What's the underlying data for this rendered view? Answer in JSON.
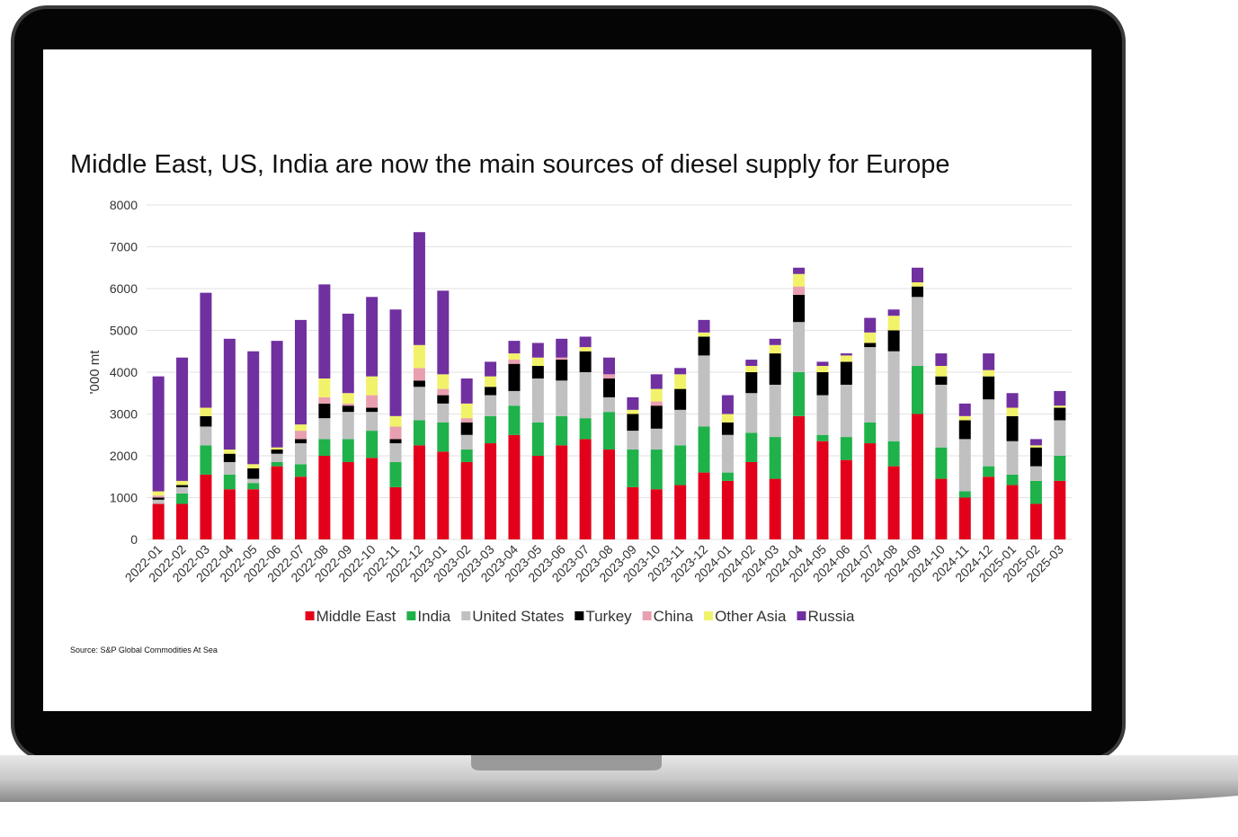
{
  "chart_data": {
    "type": "bar",
    "stacked": true,
    "title": "Middle East, US, India are now the main sources of diesel supply for Europe",
    "y_label": "'000 mt",
    "source": "Source: S&P Global Commodities At Sea",
    "categories": [
      "2022-01",
      "2022-02",
      "2022-03",
      "2022-04",
      "2022-05",
      "2022-06",
      "2022-07",
      "2022-08",
      "2022-09",
      "2022-10",
      "2022-11",
      "2022-12",
      "2023-01",
      "2023-02",
      "2023-03",
      "2023-04",
      "2023-05",
      "2023-06",
      "2023-07",
      "2023-08",
      "2023-09",
      "2023-10",
      "2023-11",
      "2023-12",
      "2024-01",
      "2024-02",
      "2024-03",
      "2024-04",
      "2024-05",
      "2024-06",
      "2024-07",
      "2024-08",
      "2024-09",
      "2024-10",
      "2024-11",
      "2024-12",
      "2025-01",
      "2025-02",
      "2025-03"
    ],
    "series": [
      {
        "name": "Middle East",
        "color": "#e3001b",
        "values": [
          850,
          850,
          1550,
          1200,
          1200,
          1750,
          1500,
          2000,
          1850,
          1950,
          1250,
          2250,
          2100,
          1850,
          2300,
          2500,
          2000,
          2250,
          2400,
          2150,
          1250,
          1200,
          1300,
          1600,
          1400,
          1850,
          1450,
          2950,
          2350,
          1900,
          2300,
          1750,
          3000,
          1450,
          1000,
          1500,
          1300,
          850,
          1400
        ]
      },
      {
        "name": "India",
        "color": "#1fb24a",
        "values": [
          0,
          250,
          700,
          350,
          150,
          100,
          300,
          400,
          550,
          650,
          600,
          600,
          700,
          300,
          650,
          700,
          800,
          700,
          500,
          900,
          900,
          950,
          950,
          1100,
          200,
          700,
          1000,
          1050,
          150,
          550,
          500,
          600,
          1150,
          750,
          150,
          250,
          250,
          550,
          600
        ]
      },
      {
        "name": "United States",
        "color": "#c0c0c0",
        "values": [
          100,
          150,
          450,
          300,
          100,
          200,
          500,
          500,
          650,
          450,
          450,
          800,
          450,
          350,
          500,
          350,
          1050,
          850,
          1100,
          350,
          450,
          500,
          850,
          1700,
          900,
          950,
          1250,
          1200,
          950,
          1250,
          1800,
          2150,
          1650,
          1500,
          1250,
          1600,
          800,
          350,
          850
        ]
      },
      {
        "name": "Turkey",
        "color": "#000000",
        "values": [
          50,
          50,
          250,
          200,
          250,
          100,
          100,
          350,
          150,
          100,
          100,
          150,
          200,
          300,
          200,
          650,
          300,
          500,
          500,
          450,
          400,
          550,
          500,
          450,
          300,
          500,
          750,
          650,
          550,
          550,
          100,
          500,
          250,
          200,
          450,
          550,
          600,
          450,
          300
        ]
      },
      {
        "name": "China",
        "color": "#e8a0b0",
        "values": [
          50,
          0,
          0,
          0,
          0,
          0,
          200,
          150,
          50,
          300,
          300,
          300,
          150,
          100,
          0,
          100,
          0,
          50,
          0,
          100,
          0,
          100,
          0,
          0,
          0,
          0,
          0,
          200,
          0,
          0,
          0,
          0,
          0,
          0,
          0,
          0,
          0,
          0,
          0
        ]
      },
      {
        "name": "Other Asia",
        "color": "#f2f26a",
        "values": [
          100,
          100,
          200,
          100,
          100,
          50,
          150,
          450,
          250,
          450,
          250,
          550,
          350,
          350,
          250,
          150,
          200,
          0,
          100,
          0,
          100,
          300,
          350,
          100,
          200,
          150,
          200,
          300,
          150,
          150,
          250,
          350,
          100,
          250,
          100,
          150,
          200,
          50,
          50
        ]
      },
      {
        "name": "Russia",
        "color": "#7030a0",
        "values": [
          2750,
          2950,
          2750,
          2650,
          2700,
          2550,
          2500,
          2250,
          1900,
          1900,
          2550,
          2700,
          2000,
          600,
          350,
          300,
          350,
          450,
          250,
          400,
          300,
          350,
          150,
          300,
          450,
          150,
          150,
          150,
          100,
          50,
          350,
          150,
          350,
          300,
          300,
          400,
          350,
          150,
          350
        ]
      }
    ],
    "ylim": [
      0,
      8000
    ],
    "yticks": [
      0,
      1000,
      2000,
      3000,
      4000,
      5000,
      6000,
      7000,
      8000
    ],
    "grid": true,
    "legend": "bottom"
  }
}
